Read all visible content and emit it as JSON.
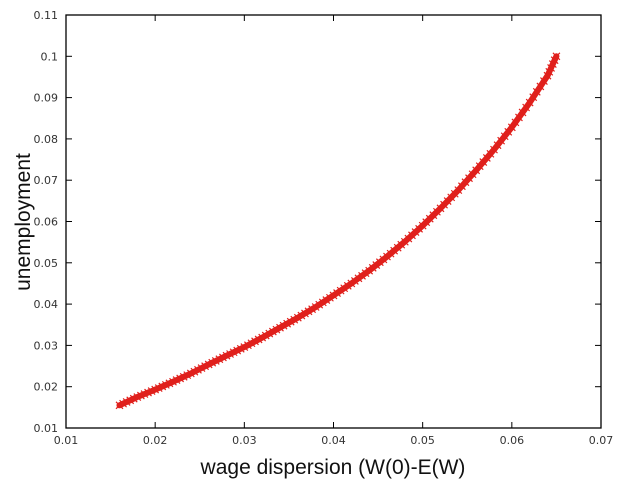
{
  "chart_data": {
    "type": "line",
    "title": "",
    "xlabel": "wage dispersion (W(0)-E(W)",
    "ylabel": "unemployment",
    "xlim": [
      0.01,
      0.07
    ],
    "ylim": [
      0.01,
      0.11
    ],
    "xticks": [
      0.01,
      0.02,
      0.03,
      0.04,
      0.05,
      0.06,
      0.07
    ],
    "xtick_labels": [
      "0.01",
      "0.02",
      "0.03",
      "0.04",
      "0.05",
      "0.06",
      "0.07"
    ],
    "yticks": [
      0.01,
      0.02,
      0.03,
      0.04,
      0.05,
      0.06,
      0.07,
      0.08,
      0.09,
      0.1,
      0.11
    ],
    "ytick_labels": [
      "0.01",
      "0.02",
      "0.03",
      "0.04",
      "0.05",
      "0.06",
      "0.07",
      "0.08",
      "0.09",
      "0.1",
      "0.11"
    ],
    "grid": false,
    "legend": "none",
    "marker": "x",
    "color": "#e0201c",
    "series": [
      {
        "x": [
          0.016,
          0.018,
          0.02,
          0.022,
          0.024,
          0.026,
          0.028,
          0.03,
          0.032,
          0.034,
          0.036,
          0.038,
          0.04,
          0.042,
          0.044,
          0.046,
          0.048,
          0.05,
          0.052,
          0.054,
          0.056,
          0.058,
          0.06,
          0.062,
          0.064,
          0.065
        ],
        "y": [
          0.0155,
          0.0175,
          0.0193,
          0.0212,
          0.0232,
          0.0254,
          0.0275,
          0.0296,
          0.0319,
          0.0343,
          0.0367,
          0.0393,
          0.0421,
          0.045,
          0.0481,
          0.0515,
          0.0551,
          0.059,
          0.0632,
          0.0676,
          0.0724,
          0.0774,
          0.0828,
          0.0888,
          0.0953,
          0.1
        ]
      }
    ]
  }
}
